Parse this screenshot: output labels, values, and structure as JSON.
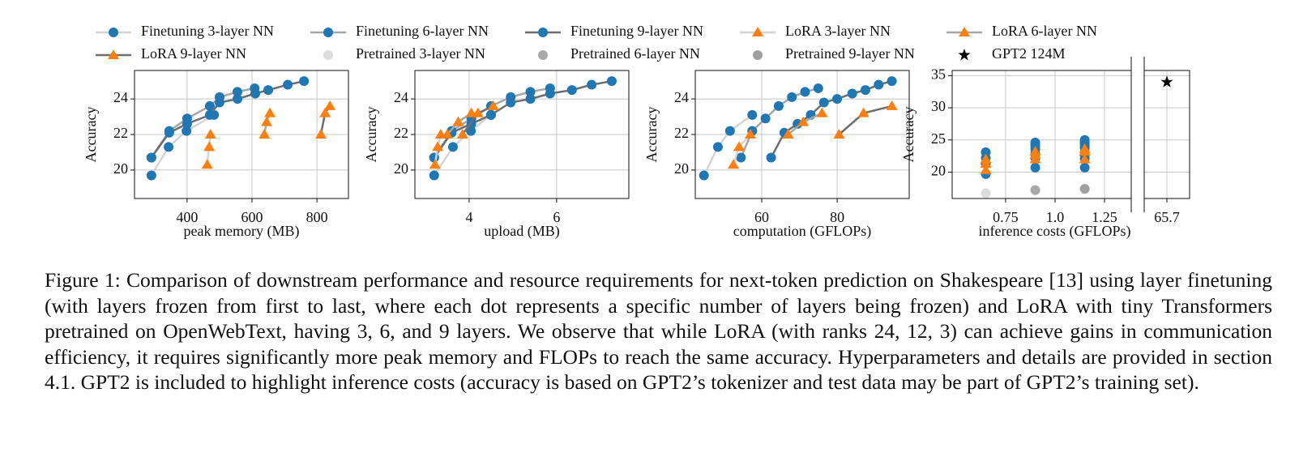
{
  "chart_data": [
    {
      "type": "line",
      "xlabel": "peak memory (MB)",
      "ylabel": "Accuracy",
      "grid": true,
      "xlim": [
        238,
        897
      ],
      "xticks": [
        400,
        600,
        800
      ],
      "ylim": [
        18.4,
        25.6
      ],
      "yticks": [
        20,
        22,
        24
      ],
      "series": [
        {
          "color": "#1f77b4",
          "line_color": "#d4d4d4",
          "marker": "circle",
          "x": [
            290,
            343,
            398,
            483
          ],
          "values": [
            19.7,
            21.3,
            22.2,
            23.1
          ]
        },
        {
          "color": "#1f77b4",
          "line_color": "#a6a6a6",
          "marker": "circle",
          "x": [
            290,
            345,
            400,
            470,
            500,
            555,
            608
          ],
          "values": [
            20.7,
            22.2,
            22.9,
            23.6,
            24.1,
            24.4,
            24.6
          ]
        },
        {
          "color": "#1f77b4",
          "line_color": "#6e6e6e",
          "marker": "circle",
          "x": [
            290,
            345,
            400,
            470,
            500,
            555,
            610,
            650,
            710,
            760
          ],
          "values": [
            20.7,
            22.1,
            22.6,
            23.1,
            23.8,
            24.0,
            24.3,
            24.5,
            24.8,
            25.0
          ]
        },
        {
          "color": "#ff7f0e",
          "line_color": "#d4d4d4",
          "marker": "triangle",
          "x": [
            462,
            468,
            472
          ],
          "values": [
            20.3,
            21.3,
            22.0
          ]
        },
        {
          "color": "#ff7f0e",
          "line_color": "#a6a6a6",
          "marker": "triangle",
          "x": [
            638,
            645,
            655
          ],
          "values": [
            22.0,
            22.7,
            23.2
          ]
        },
        {
          "color": "#ff7f0e",
          "line_color": "#6e6e6e",
          "marker": "triangle",
          "x": [
            812,
            825,
            840
          ],
          "values": [
            22.0,
            23.2,
            23.6
          ]
        }
      ]
    },
    {
      "type": "line",
      "xlabel": "upload (MB)",
      "ylabel": "Accuracy",
      "grid": true,
      "xlim": [
        2.76,
        7.65
      ],
      "xticks": [
        4,
        6
      ],
      "ylim": [
        18.4,
        25.6
      ],
      "yticks": [
        20,
        22,
        24
      ],
      "series": [
        {
          "color": "#1f77b4",
          "line_color": "#d4d4d4",
          "marker": "circle",
          "x": [
            3.2,
            3.63,
            4.04,
            4.5
          ],
          "values": [
            19.7,
            21.3,
            22.2,
            23.1
          ]
        },
        {
          "color": "#1f77b4",
          "line_color": "#a6a6a6",
          "marker": "circle",
          "x": [
            3.2,
            3.6,
            4.05,
            4.5,
            4.95,
            5.4,
            5.85
          ],
          "values": [
            20.7,
            22.2,
            22.9,
            23.6,
            24.1,
            24.4,
            24.6
          ]
        },
        {
          "color": "#1f77b4",
          "line_color": "#6e6e6e",
          "marker": "circle",
          "x": [
            3.2,
            3.6,
            4.05,
            4.5,
            4.95,
            5.4,
            5.85,
            6.35,
            6.8,
            7.26
          ],
          "values": [
            20.7,
            22.1,
            22.6,
            23.1,
            23.8,
            24.0,
            24.3,
            24.5,
            24.8,
            25.0
          ]
        },
        {
          "color": "#ff7f0e",
          "line_color": "#d4d4d4",
          "marker": "triangle",
          "x": [
            3.22,
            3.28,
            3.35
          ],
          "values": [
            20.3,
            21.3,
            22.0
          ]
        },
        {
          "color": "#ff7f0e",
          "line_color": "#a6a6a6",
          "marker": "triangle",
          "x": [
            3.5,
            3.75,
            4.05
          ],
          "values": [
            22.0,
            22.7,
            23.2
          ]
        },
        {
          "color": "#ff7f0e",
          "line_color": "#6e6e6e",
          "marker": "triangle",
          "x": [
            3.85,
            4.2,
            4.55
          ],
          "values": [
            22.0,
            23.2,
            23.6
          ]
        }
      ]
    },
    {
      "type": "line",
      "xlabel": "computation (GFLOPs)",
      "ylabel": "Accuracy",
      "grid": true,
      "xlim": [
        42.4,
        99.1
      ],
      "xticks": [
        60,
        80
      ],
      "ylim": [
        18.4,
        25.6
      ],
      "yticks": [
        20,
        22,
        24
      ],
      "series": [
        {
          "color": "#1f77b4",
          "line_color": "#d4d4d4",
          "marker": "circle",
          "x": [
            44.7,
            48.4,
            51.6,
            57.5
          ],
          "values": [
            19.7,
            21.3,
            22.2,
            23.1
          ]
        },
        {
          "color": "#1f77b4",
          "line_color": "#a6a6a6",
          "marker": "circle",
          "x": [
            54.5,
            57.5,
            61,
            64.5,
            68,
            71.5,
            75
          ],
          "values": [
            20.7,
            22.2,
            22.9,
            23.6,
            24.1,
            24.4,
            24.6
          ]
        },
        {
          "color": "#1f77b4",
          "line_color": "#6e6e6e",
          "marker": "circle",
          "x": [
            62.5,
            66,
            69.5,
            73,
            76.5,
            80,
            84,
            87.5,
            91,
            94.5
          ],
          "values": [
            20.7,
            22.1,
            22.6,
            23.1,
            23.8,
            24.0,
            24.3,
            24.5,
            24.8,
            25.0
          ]
        },
        {
          "color": "#ff7f0e",
          "line_color": "#d4d4d4",
          "marker": "triangle",
          "x": [
            52.5,
            54,
            57
          ],
          "values": [
            20.3,
            21.3,
            22.0
          ]
        },
        {
          "color": "#ff7f0e",
          "line_color": "#a6a6a6",
          "marker": "triangle",
          "x": [
            67,
            71,
            76
          ],
          "values": [
            22.0,
            22.7,
            23.2
          ]
        },
        {
          "color": "#ff7f0e",
          "line_color": "#6e6e6e",
          "marker": "triangle",
          "x": [
            80.5,
            87,
            94.5
          ],
          "values": [
            22.0,
            23.2,
            23.6
          ]
        }
      ]
    },
    {
      "type": "scatter",
      "xlabel": "inference costs (GFLOPs)",
      "ylabel": "Accuracy",
      "grid": true,
      "xlim": [
        0.48,
        1.385
      ],
      "xticks": [
        0.75,
        {
          "value": 1,
          "label": "1.0"
        },
        1.25
      ],
      "x2lim": [
        65.55,
        65.85
      ],
      "x2ticks": [
        65.7
      ],
      "ylim": [
        15.9,
        35.8
      ],
      "yticks": [
        20,
        25,
        30,
        35
      ],
      "series": [
        {
          "name": "Finetuning 3-layer NN",
          "color": "#1f77b4",
          "line_color": "#d4d4d4",
          "marker": "circle",
          "x": [
            0.65,
            0.65,
            0.65,
            0.65
          ],
          "values": [
            19.7,
            21.3,
            22.2,
            23.1
          ]
        },
        {
          "name": "Finetuning 6-layer NN",
          "color": "#1f77b4",
          "line_color": "#a6a6a6",
          "marker": "circle",
          "x": [
            0.9,
            0.9,
            0.9,
            0.9,
            0.9,
            0.9,
            0.9
          ],
          "values": [
            20.7,
            22.2,
            22.9,
            23.6,
            24.1,
            24.4,
            24.6
          ]
        },
        {
          "name": "Finetuning 9-layer NN",
          "color": "#1f77b4",
          "line_color": "#6e6e6e",
          "marker": "circle",
          "x": [
            1.15,
            1.15,
            1.15,
            1.15,
            1.15,
            1.15,
            1.15,
            1.15,
            1.15,
            1.15
          ],
          "values": [
            20.7,
            22.1,
            22.6,
            23.1,
            23.8,
            24.0,
            24.3,
            24.5,
            24.8,
            25.0
          ]
        },
        {
          "name": "LoRA 3-layer NN",
          "color": "#ff7f0e",
          "line_color": "#d4d4d4",
          "marker": "triangle",
          "x": [
            0.65,
            0.65,
            0.65
          ],
          "values": [
            20.3,
            21.3,
            22.0
          ]
        },
        {
          "name": "LoRA 6-layer NN",
          "color": "#ff7f0e",
          "line_color": "#a6a6a6",
          "marker": "triangle",
          "x": [
            0.9,
            0.9,
            0.9
          ],
          "values": [
            22.0,
            22.7,
            23.2
          ]
        },
        {
          "name": "LoRA 9-layer NN",
          "color": "#ff7f0e",
          "line_color": "#6e6e6e",
          "marker": "triangle",
          "x": [
            1.15,
            1.15,
            1.15
          ],
          "values": [
            22.0,
            23.2,
            23.6
          ]
        },
        {
          "name": "Pretrained 3-layer NN",
          "color": "#dcdcdc",
          "marker": "circle",
          "x": [
            0.65
          ],
          "values": [
            16.7
          ]
        },
        {
          "name": "Pretrained 6-layer NN",
          "color": "#a9a9a9",
          "marker": "circle",
          "x": [
            0.9
          ],
          "values": [
            17.2
          ]
        },
        {
          "name": "Pretrained 9-layer NN",
          "color": "#a0a0a0",
          "marker": "circle",
          "x": [
            1.15
          ],
          "values": [
            17.4
          ]
        },
        {
          "name": "GPT2 124M",
          "color": "#000000",
          "marker": "star",
          "axis": "x2",
          "x": [
            65.7
          ],
          "values": [
            34
          ]
        }
      ]
    }
  ],
  "caption": "Figure 1: Comparison of downstream performance and resource requirements for next-token prediction on Shakespeare [13] using layer finetuning (with layers frozen from first to last, where each dot represents a specific number of layers being frozen) and LoRA with tiny Transformers pretrained on OpenWebText, having 3, 6, and 9 layers. We observe that while LoRA (with ranks 24, 12, 3) can achieve gains in communication efficiency, it requires significantly more peak memory and FLOPs to reach the same accuracy. Hyperparameters and details are provided in section 4.1. GPT2 is included to highlight inference costs (accuracy is based on GPT2’s tokenizer and test data may be part of GPT2’s training set)."
}
